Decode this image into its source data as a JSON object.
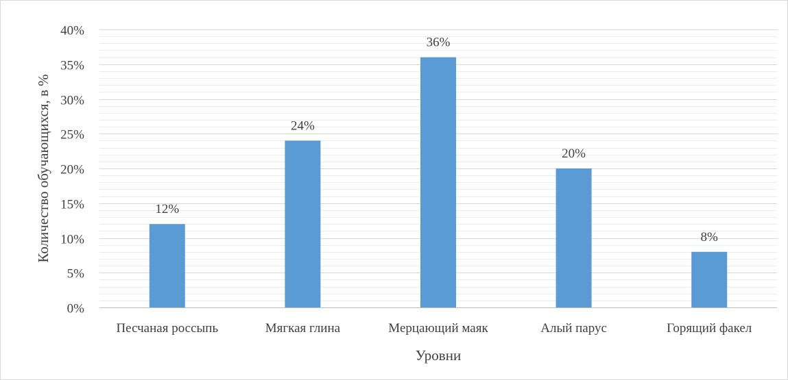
{
  "chart_data": {
    "type": "bar",
    "categories": [
      "Песчаная россыпь",
      "Мягкая глина",
      "Мерцающий маяк",
      "Алый парус",
      "Горящий факел"
    ],
    "series": [
      {
        "values": [
          12,
          24,
          36,
          20,
          8
        ],
        "data_labels": [
          "12%",
          "24%",
          "36%",
          "20%",
          "8%"
        ]
      }
    ],
    "y_ticks": [
      "0%",
      "5%",
      "10%",
      "15%",
      "20%",
      "25%",
      "30%",
      "35%",
      "40%"
    ],
    "ylim": [
      0,
      40
    ],
    "major_step": 5,
    "minor_step": 1,
    "xlabel": "Уровни",
    "ylabel": "Количество обучающихся, в %",
    "grid": true,
    "legend": "none",
    "colors": {
      "bar": "#5b9bd5",
      "major_grid": "#d9d9d9",
      "minor_grid": "#ececec",
      "axis": "#bfbfbf",
      "text": "#404040"
    }
  }
}
